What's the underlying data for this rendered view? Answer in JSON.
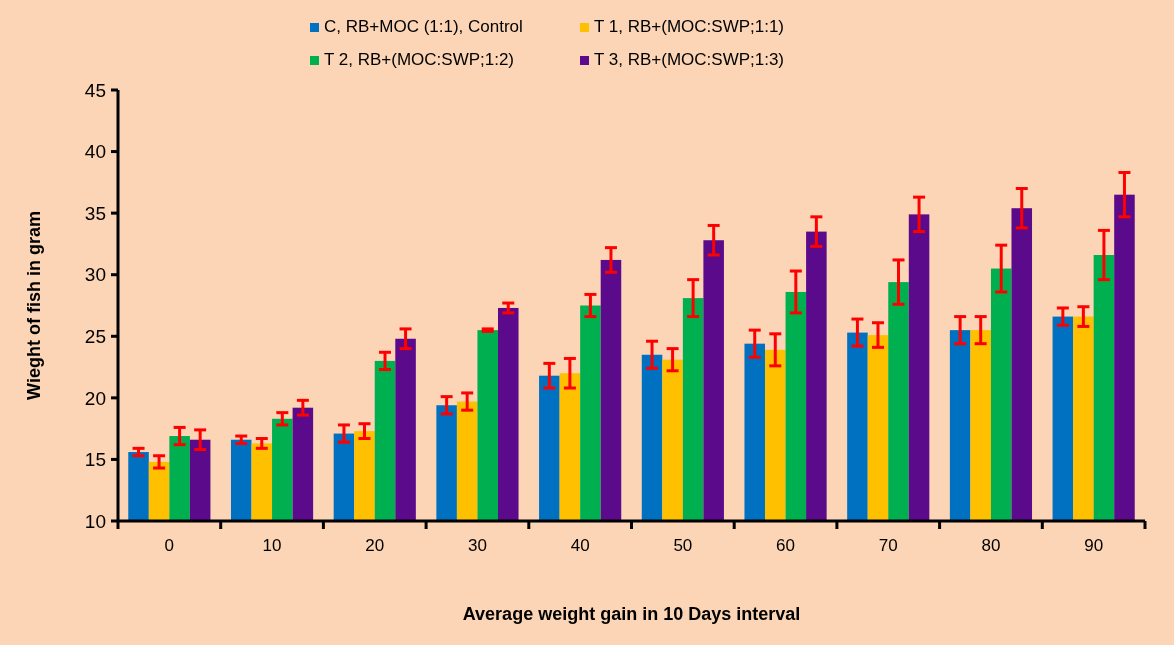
{
  "chart_data": {
    "type": "bar",
    "xlabel": "Average  weight gain in 10 Days interval",
    "ylabel": "Wieght of fish in gram",
    "categories": [
      "0",
      "10",
      "20",
      "30",
      "40",
      "50",
      "60",
      "70",
      "80",
      "90"
    ],
    "series": [
      {
        "name": "C, RB+MOC (1:1), Control",
        "color": "#0070c0",
        "values": [
          15.6,
          16.6,
          17.1,
          19.4,
          21.8,
          23.5,
          24.4,
          25.3,
          25.5,
          26.6
        ],
        "errors": [
          0.3,
          0.3,
          0.7,
          0.7,
          1.0,
          1.1,
          1.1,
          1.1,
          1.1,
          0.7
        ]
      },
      {
        "name": "T 1, RB+(MOC:SWP;1:1)",
        "color": "#ffc000",
        "values": [
          14.8,
          16.3,
          17.3,
          19.7,
          22.0,
          23.1,
          23.9,
          25.1,
          25.5,
          26.6
        ],
        "errors": [
          0.5,
          0.4,
          0.6,
          0.7,
          1.2,
          0.9,
          1.3,
          1.0,
          1.1,
          0.8
        ]
      },
      {
        "name": "T 2, RB+(MOC:SWP;1:2)",
        "color": "#00b050",
        "values": [
          16.9,
          18.3,
          23.0,
          25.5,
          27.5,
          28.1,
          28.6,
          29.4,
          30.5,
          31.6
        ],
        "errors": [
          0.7,
          0.5,
          0.7,
          0.1,
          0.9,
          1.5,
          1.7,
          1.8,
          1.9,
          2.0
        ]
      },
      {
        "name": "T 3, RB+(MOC:SWP;1:3)",
        "color": "#5a0a8a",
        "values": [
          16.6,
          19.2,
          24.8,
          27.3,
          31.2,
          32.8,
          33.5,
          34.9,
          35.4,
          36.5
        ],
        "errors": [
          0.8,
          0.6,
          0.8,
          0.4,
          1.0,
          1.2,
          1.2,
          1.4,
          1.6,
          1.8
        ]
      }
    ],
    "ylim": [
      10,
      45
    ],
    "yticks": [
      10,
      15,
      20,
      25,
      30,
      35,
      40,
      45
    ],
    "grid": false,
    "legend": "top"
  }
}
